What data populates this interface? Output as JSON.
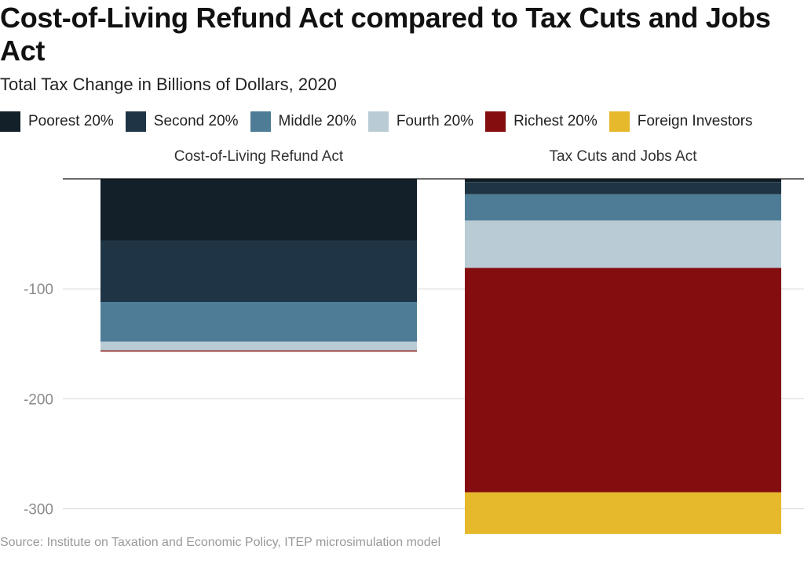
{
  "title": "Cost-of-Living Refund Act compared to Tax Cuts and Jobs Act",
  "subtitle": "Total Tax Change in Billions of Dollars, 2020",
  "source": "Source: Institute on Taxation and Economic Policy, ITEP microsimulation model",
  "legend": [
    {
      "label": "Poorest 20%",
      "color": "#132029"
    },
    {
      "label": "Second 20%",
      "color": "#1f3545"
    },
    {
      "label": "Middle 20%",
      "color": "#4e7c96"
    },
    {
      "label": "Fourth 20%",
      "color": "#b9ccd6"
    },
    {
      "label": "Richest 20%",
      "color": "#840d0f"
    },
    {
      "label": "Foreign Investors",
      "color": "#e6b82c"
    }
  ],
  "chart_data": {
    "type": "bar",
    "stacked": true,
    "categories": [
      "Cost-of-Living Refund Act",
      "Tax Cuts and Jobs Act"
    ],
    "series": [
      {
        "name": "Poorest 20%",
        "color": "#132029",
        "values": [
          -56,
          -3
        ]
      },
      {
        "name": "Second 20%",
        "color": "#1f3545",
        "values": [
          -56,
          -11
        ]
      },
      {
        "name": "Middle 20%",
        "color": "#4e7c96",
        "values": [
          -36,
          -24
        ]
      },
      {
        "name": "Fourth 20%",
        "color": "#b9ccd6",
        "values": [
          -8,
          -43
        ]
      },
      {
        "name": "Richest 20%",
        "color": "#840d0f",
        "values": [
          -1,
          -204
        ]
      },
      {
        "name": "Foreign Investors",
        "color": "#e6b82c",
        "values": [
          0,
          -38
        ]
      }
    ],
    "ylim": [
      -325,
      0
    ],
    "yticks": [
      -100,
      -200,
      -300
    ],
    "ytick_labels": [
      "-100",
      "-200",
      "-300"
    ],
    "xlabel": "",
    "ylabel": "",
    "grid": true
  }
}
